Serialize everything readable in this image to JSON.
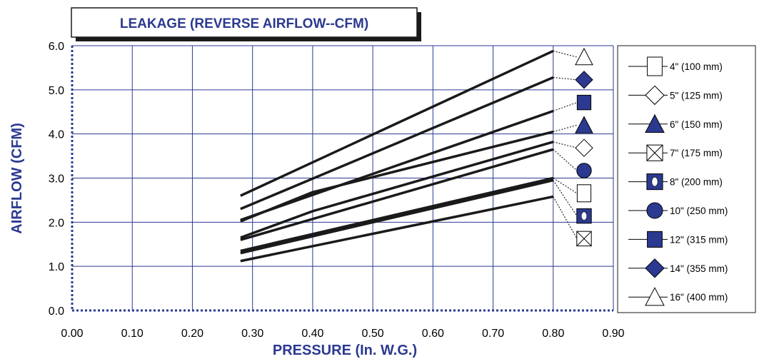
{
  "chart_data": {
    "type": "line",
    "title": "LEAKAGE (REVERSE AIRFLOW--CFM)",
    "xlabel": "PRESSURE (In. W.G.)",
    "ylabel": "AIRFLOW (CFM)",
    "xlim": [
      0,
      0.9
    ],
    "ylim": [
      0,
      6
    ],
    "x_ticks": [
      "0.00",
      "0.10",
      "0.20",
      "0.30",
      "0.40",
      "0.50",
      "0.60",
      "0.70",
      "0.80",
      "0.90"
    ],
    "y_ticks": [
      "0.0",
      "1.0",
      "2.0",
      "3.0",
      "4.0",
      "5.0",
      "6.0"
    ],
    "grid": true,
    "legend_position": "right",
    "colors": {
      "accent": "#2b3990",
      "line": "#1a1a1a",
      "grid": "#2b3990"
    },
    "series": [
      {
        "name": "16\" (400 mm)",
        "marker": "triangle-open",
        "x": [
          0.28,
          0.8
        ],
        "y": [
          2.6,
          5.88
        ]
      },
      {
        "name": "14\" (355 mm)",
        "marker": "diamond-filled",
        "x": [
          0.28,
          0.8
        ],
        "y": [
          2.3,
          5.28
        ]
      },
      {
        "name": "12\" (315 mm)",
        "marker": "square-filled",
        "x": [
          0.28,
          0.8
        ],
        "y": [
          2.05,
          4.52
        ]
      },
      {
        "name": "6\" (150 mm)",
        "marker": "triangle-filled",
        "x": [
          0.28,
          0.4,
          0.8
        ],
        "y": [
          2.02,
          2.68,
          4.05
        ]
      },
      {
        "name": "5\" (125 mm)",
        "marker": "diamond-open",
        "x": [
          0.28,
          0.4,
          0.8
        ],
        "y": [
          1.65,
          2.25,
          3.82
        ]
      },
      {
        "name": "10\" (250 mm)",
        "marker": "circle-filled",
        "x": [
          0.28,
          0.8
        ],
        "y": [
          1.6,
          3.65
        ]
      },
      {
        "name": "4\" (100 mm)",
        "marker": "square-open",
        "x": [
          0.28,
          0.8
        ],
        "y": [
          1.35,
          3.0
        ]
      },
      {
        "name": "8\" (200 mm)",
        "marker": "square-ellipse",
        "x": [
          0.28,
          0.8
        ],
        "y": [
          1.3,
          2.95
        ]
      },
      {
        "name": "7\" (175 mm)",
        "marker": "square-x",
        "x": [
          0.28,
          0.8
        ],
        "y": [
          1.12,
          2.58
        ]
      }
    ],
    "legend": [
      {
        "label": "4\" (100 mm)",
        "marker": "square-open"
      },
      {
        "label": "5\" (125 mm)",
        "marker": "diamond-open"
      },
      {
        "label": "6\" (150 mm)",
        "marker": "triangle-filled"
      },
      {
        "label": "7\" (175 mm)",
        "marker": "square-x"
      },
      {
        "label": "8\" (200 mm)",
        "marker": "square-ellipse"
      },
      {
        "label": "10\" (250 mm)",
        "marker": "circle-filled"
      },
      {
        "label": "12\" (315 mm)",
        "marker": "square-filled"
      },
      {
        "label": "14\" (355 mm)",
        "marker": "diamond-filled"
      },
      {
        "label": "16\" (400 mm)",
        "marker": "triangle-open"
      }
    ]
  }
}
